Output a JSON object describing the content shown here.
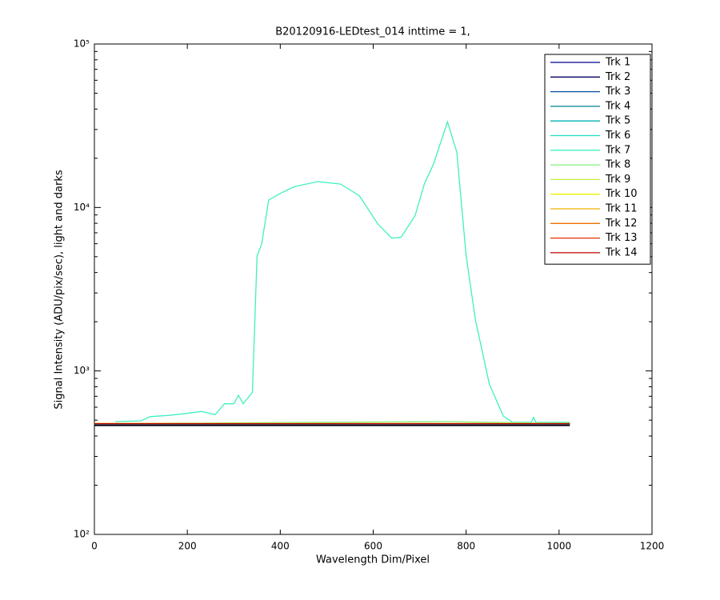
{
  "chart_data": {
    "type": "line",
    "title": "B20120916-LEDtest_014 inttime = 1,",
    "x_label": "Wavelength Dim/Pixel",
    "y_label": "Signal Intensity (ADU/pix/sec), light and darks",
    "xlim": [
      0,
      1200
    ],
    "xticks": [
      0,
      200,
      400,
      600,
      800,
      1000,
      1200
    ],
    "ylim": [
      100,
      100000
    ],
    "log_y": true,
    "yticks": [
      {
        "value": 100,
        "label": "10²"
      },
      {
        "value": 1000,
        "label": "10³"
      },
      {
        "value": 10000,
        "label": "10⁴"
      },
      {
        "value": 100000,
        "label": "10⁵"
      }
    ],
    "legend": "upper right",
    "series": [
      {
        "name": "Trk 1",
        "color": "#000090",
        "x": [
          0,
          1023
        ],
        "values": [
          470,
          470
        ]
      },
      {
        "name": "Trk 2",
        "color": "#000060",
        "x": [
          0,
          1023
        ],
        "values": [
          470,
          470
        ]
      },
      {
        "name": "Trk 3",
        "color": "#0050a0",
        "x": [
          0,
          1023
        ],
        "values": [
          472,
          472
        ]
      },
      {
        "name": "Trk 4",
        "color": "#008090",
        "x": [
          0,
          1023
        ],
        "values": [
          472,
          472
        ]
      },
      {
        "name": "Trk 5",
        "color": "#00b0b0",
        "x": [
          0,
          1023
        ],
        "values": [
          474,
          474
        ]
      },
      {
        "name": "Trk 6",
        "color": "#20e0c0",
        "x": [
          0,
          1023
        ],
        "values": [
          475,
          475
        ]
      },
      {
        "name": "Trk 7",
        "color": "#40f0c0",
        "x": [
          45,
          100,
          120,
          160,
          200,
          230,
          260,
          280,
          300,
          310,
          320,
          340,
          350,
          360,
          375,
          400,
          430,
          480,
          530,
          570,
          610,
          640,
          660,
          690,
          710,
          730,
          760,
          780,
          800,
          820,
          850,
          880,
          900,
          940,
          945,
          950,
          1023
        ],
        "values": [
          490,
          495,
          525,
          535,
          550,
          565,
          540,
          630,
          630,
          710,
          630,
          740,
          5050,
          5970,
          11100,
          12200,
          13400,
          14400,
          13900,
          11800,
          7930,
          6490,
          6580,
          8900,
          13900,
          18500,
          33400,
          21800,
          5050,
          2050,
          830,
          530,
          485,
          485,
          520,
          485,
          485
        ]
      },
      {
        "name": "Trk 8",
        "color": "#80f080",
        "x": [
          0,
          760,
          1023
        ],
        "values": [
          476,
          490,
          476
        ]
      },
      {
        "name": "Trk 9",
        "color": "#c0f040",
        "x": [
          0,
          1023
        ],
        "values": [
          476,
          476
        ]
      },
      {
        "name": "Trk 10",
        "color": "#f0f000",
        "x": [
          0,
          1023
        ],
        "values": [
          477,
          477
        ]
      },
      {
        "name": "Trk 11",
        "color": "#f0b000",
        "x": [
          0,
          1023
        ],
        "values": [
          477,
          477
        ]
      },
      {
        "name": "Trk 12",
        "color": "#f07000",
        "x": [
          0,
          1023
        ],
        "values": [
          476,
          476
        ]
      },
      {
        "name": "Trk 13",
        "color": "#e03000",
        "x": [
          0,
          1023
        ],
        "values": [
          475,
          475
        ]
      },
      {
        "name": "Trk 14",
        "color": "#c00000",
        "x": [
          0,
          1023
        ],
        "values": [
          475,
          475
        ]
      },
      {
        "color": "#000000",
        "x": [
          0,
          1023
        ],
        "values": [
          463,
          463
        ]
      }
    ]
  }
}
